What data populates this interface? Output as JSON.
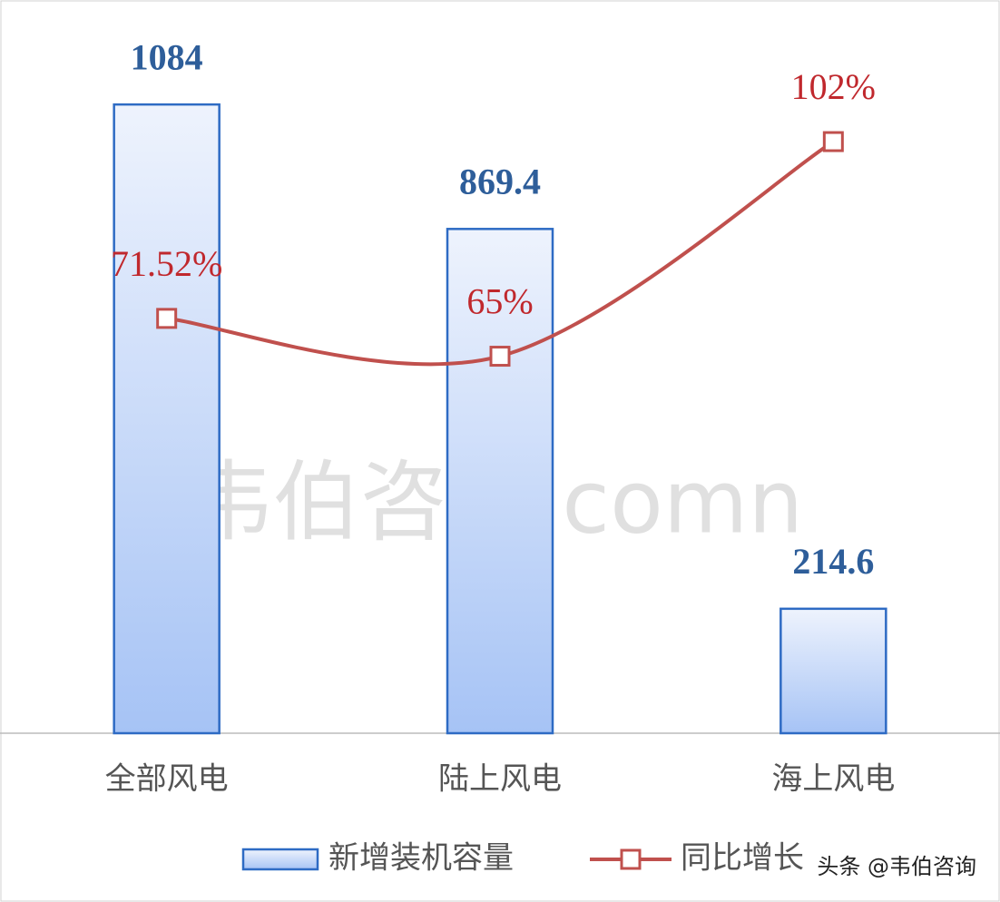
{
  "chart_data": {
    "type": "bar",
    "categories": [
      "全部风电",
      "陆上风电",
      "海上风电"
    ],
    "series": [
      {
        "name": "新增装机容量",
        "type": "bar",
        "color": "#2e6bc4",
        "values": [
          1084,
          869.4,
          214.6
        ]
      },
      {
        "name": "同比增长",
        "type": "line",
        "axis": "y2",
        "color": "#c0504d",
        "values": [
          71.52,
          65,
          102
        ],
        "value_labels": [
          "71.52%",
          "65%",
          "102%"
        ]
      }
    ],
    "ylim": [
      0,
      1200
    ],
    "y2lim": [
      0,
      120
    ],
    "watermark": "韦伯咨询.comn",
    "source_mark": "头条 @韦伯咨询"
  }
}
